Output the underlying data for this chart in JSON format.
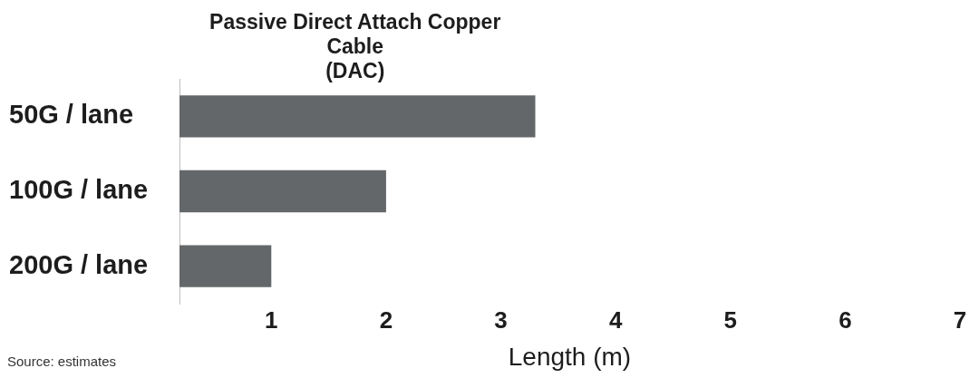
{
  "chart_data": {
    "type": "bar",
    "orientation": "horizontal",
    "title": "Passive Direct Attach Copper Cable\n(DAC)",
    "xlabel": "Length (m)",
    "categories": [
      "50G / lane",
      "100G / lane",
      "200G / lane"
    ],
    "values": [
      3.3,
      2,
      1
    ],
    "color": "#646769",
    "xlim": [
      0.2,
      7
    ],
    "xticks": [
      1,
      2,
      3,
      4,
      5,
      6,
      7
    ],
    "grid": false,
    "annotations": [
      "Source: estimates"
    ]
  }
}
